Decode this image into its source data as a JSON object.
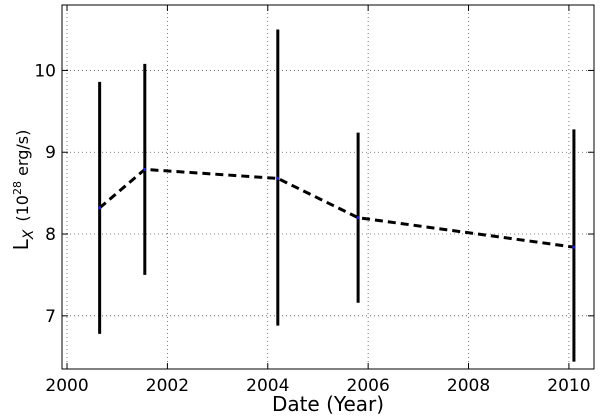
{
  "chart_data": {
    "type": "line",
    "xlabel": "Date (Year)",
    "ylabel": {
      "main": "L",
      "sub": "X",
      "unit_prefix": "(10",
      "unit_exp": "28",
      "unit_suffix": " erg/s)"
    },
    "xlim": [
      1999.9,
      2010.5
    ],
    "ylim": [
      6.35,
      10.8
    ],
    "x_ticks": [
      2000,
      2002,
      2004,
      2006,
      2008,
      2010
    ],
    "x_tick_labels": [
      "2000",
      "2002",
      "2004",
      "2006",
      "2008",
      "2010"
    ],
    "y_ticks": [
      7,
      8,
      9,
      10
    ],
    "y_tick_labels": [
      "7",
      "8",
      "9",
      "10"
    ],
    "grid": true,
    "series": [
      {
        "x": [
          2000.65,
          2001.55,
          2004.2,
          2005.8,
          2010.1
        ],
        "y": [
          8.32,
          8.79,
          8.68,
          8.2,
          7.84
        ],
        "y_low": [
          6.78,
          7.5,
          6.88,
          7.16,
          6.44
        ],
        "y_high": [
          9.86,
          10.08,
          10.5,
          9.24,
          9.28
        ],
        "line_style": "dashed",
        "line_color": "#000000",
        "marker_color": "#1f1fbf",
        "errorbar_color": "#000000"
      }
    ]
  }
}
